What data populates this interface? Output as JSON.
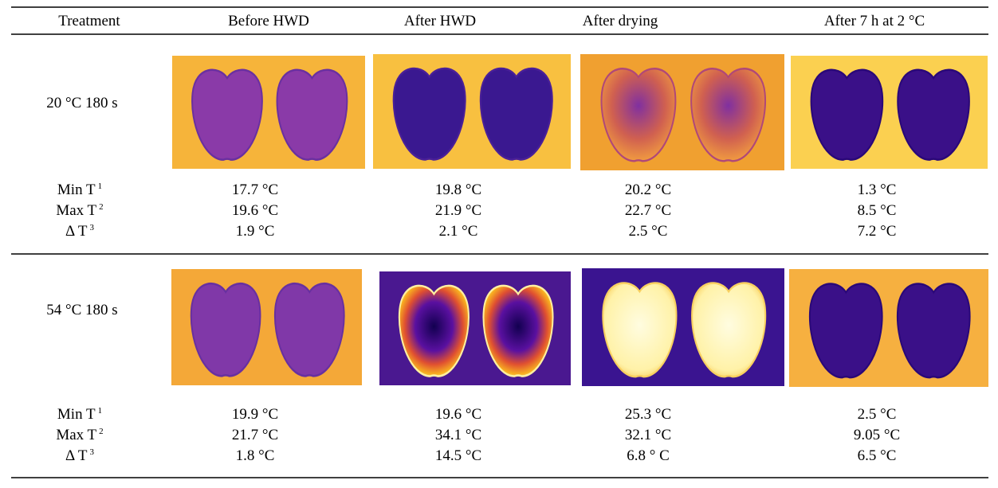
{
  "header": [
    "Treatment",
    "Before HWD",
    "After HWD",
    "After drying",
    "After 7 h at 2 °C"
  ],
  "groups": [
    {
      "treatment": "20 °C 180 s",
      "stats": [
        {
          "label": "Min T",
          "note": "1",
          "values": [
            "17.7 °C",
            "19.8 °C",
            "20.2 °C",
            "1.3 °C"
          ]
        },
        {
          "label": "Max T",
          "note": "2",
          "values": [
            "19.6 °C",
            "21.9 °C",
            "22.7 °C",
            "8.5 °C"
          ]
        },
        {
          "label": "Δ T",
          "note": "3",
          "values": [
            "1.9 °C",
            "2.1 °C",
            "2.5 °C",
            "7.2 °C"
          ]
        }
      ]
    },
    {
      "treatment": "54 °C 180 s",
      "stats": [
        {
          "label": "Min T",
          "note": "1",
          "values": [
            "19.9 °C",
            "19.6 °C",
            "25.3 °C",
            "2.5 °C"
          ]
        },
        {
          "label": "Max T",
          "note": "2",
          "values": [
            "21.7 °C",
            "34.1 °C",
            "32.1 °C",
            "9.05 °C"
          ]
        },
        {
          "label": "Δ T",
          "note": "3",
          "values": [
            "1.8 °C",
            "14.5 °C",
            "6.8 ° C",
            "6.5 °C"
          ]
        }
      ]
    }
  ]
}
